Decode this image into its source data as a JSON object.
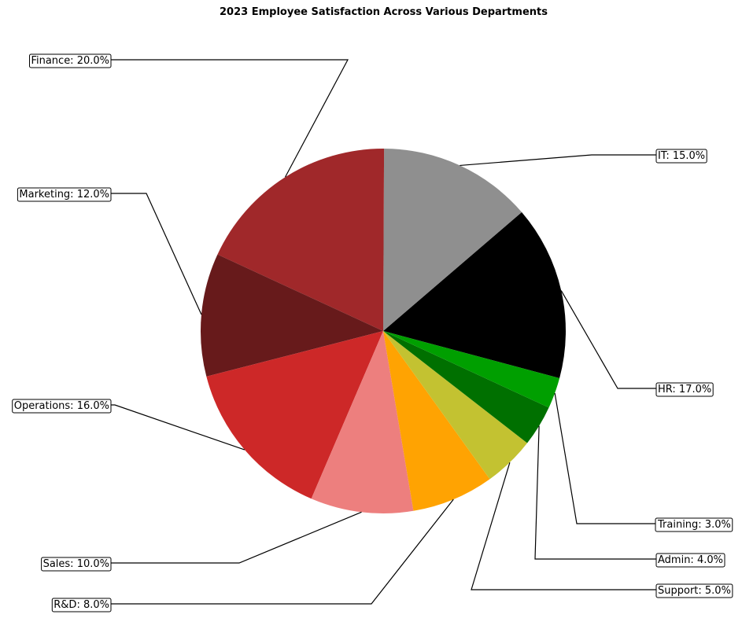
{
  "chart_data": {
    "type": "pie",
    "title": "2023 Employee Satisfaction Across Various Departments",
    "slices": [
      {
        "label": "HR",
        "value": 17.0,
        "color": "#000000",
        "text": "HR: 17.0%"
      },
      {
        "label": "IT",
        "value": 15.0,
        "color": "#8f8f8f",
        "text": "IT: 15.0%"
      },
      {
        "label": "Finance",
        "value": 20.0,
        "color": "#a0282a",
        "text": "Finance: 20.0%"
      },
      {
        "label": "Marketing",
        "value": 12.0,
        "color": "#671a1b",
        "text": "Marketing: 12.0%"
      },
      {
        "label": "Operations",
        "value": 16.0,
        "color": "#cd2828",
        "text": "Operations: 16.0%"
      },
      {
        "label": "Sales",
        "value": 10.0,
        "color": "#ed7f7e",
        "text": "Sales: 10.0%"
      },
      {
        "label": "R&D",
        "value": 8.0,
        "color": "#ffa302",
        "text": "R&D: 8.0%"
      },
      {
        "label": "Support",
        "value": 5.0,
        "color": "#c3c231",
        "text": "Support: 5.0%"
      },
      {
        "label": "Admin",
        "value": 4.0,
        "color": "#007000",
        "text": "Admin: 4.0%"
      },
      {
        "label": "Training",
        "value": 3.0,
        "color": "#009f00",
        "text": "Training: 3.0%"
      }
    ]
  }
}
